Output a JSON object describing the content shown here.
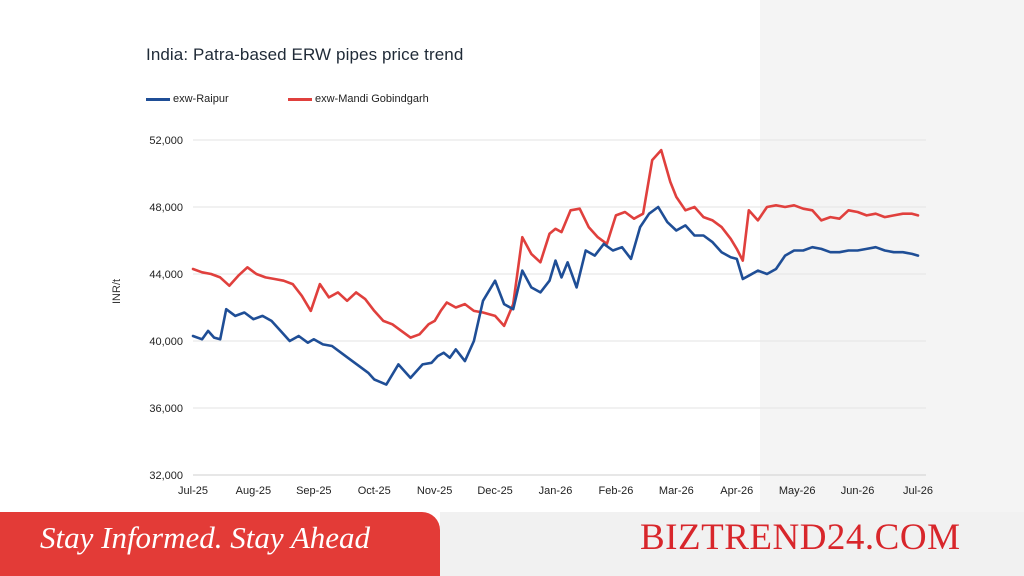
{
  "chart_data": {
    "type": "line",
    "title": "India: Patra-based ERW pipes price trend",
    "ylabel": "INR/t",
    "xlabel": "",
    "ylim": [
      32000,
      52000
    ],
    "yticks": [
      "32,000",
      "36,000",
      "40,000",
      "44,000",
      "48,000",
      "52,000"
    ],
    "ytick_values": [
      32000,
      36000,
      40000,
      44000,
      48000,
      52000
    ],
    "xticks": [
      "Jul-25",
      "Aug-25",
      "Sep-25",
      "Oct-25",
      "Nov-25",
      "Dec-25",
      "Jan-26",
      "Feb-26",
      "Mar-26",
      "Apr-26",
      "May-26",
      "Jun-26",
      "Jul-26"
    ],
    "x_tick_months": [
      0,
      1,
      2,
      3,
      4,
      5,
      6,
      7,
      8,
      9,
      10,
      11,
      12
    ],
    "grid": "horizontal",
    "legend": "top-left",
    "series": [
      {
        "name": "exw-Raipur",
        "color": "#1f4e96",
        "x": [
          0,
          0.15,
          0.25,
          0.35,
          0.45,
          0.55,
          0.7,
          0.85,
          1.0,
          1.15,
          1.3,
          1.45,
          1.6,
          1.75,
          1.9,
          2.0,
          2.15,
          2.3,
          2.45,
          2.6,
          2.75,
          2.9,
          3.0,
          3.2,
          3.4,
          3.6,
          3.8,
          3.95,
          4.05,
          4.15,
          4.25,
          4.35,
          4.5,
          4.65,
          4.8,
          5.0,
          5.15,
          5.3,
          5.45,
          5.6,
          5.75,
          5.9,
          6.0,
          6.1,
          6.2,
          6.35,
          6.5,
          6.65,
          6.8,
          6.95,
          7.1,
          7.25,
          7.4,
          7.55,
          7.7,
          7.85,
          8.0,
          8.15,
          8.3,
          8.45,
          8.6,
          8.75,
          8.9,
          9.0,
          9.1,
          9.2,
          9.35,
          9.5,
          9.65,
          9.8,
          9.95,
          10.1,
          10.25,
          10.4,
          10.55,
          10.7,
          10.85,
          11.0,
          11.15,
          11.3,
          11.45,
          11.6,
          11.75,
          11.9,
          12.0
        ],
        "values": [
          40300,
          40100,
          40600,
          40200,
          40100,
          41900,
          41500,
          41700,
          41300,
          41500,
          41200,
          40600,
          40000,
          40300,
          39900,
          40100,
          39800,
          39700,
          39300,
          38900,
          38500,
          38100,
          37700,
          37400,
          38600,
          37800,
          38600,
          38700,
          39100,
          39300,
          39000,
          39500,
          38800,
          40000,
          42400,
          43600,
          42200,
          41900,
          44200,
          43200,
          42900,
          43600,
          44800,
          43800,
          44700,
          43200,
          45400,
          45100,
          45800,
          45400,
          45600,
          44900,
          46800,
          47600,
          48000,
          47100,
          46600,
          46900,
          46300,
          46300,
          45900,
          45300,
          45000,
          44900,
          43700,
          43900,
          44200,
          44000,
          44300,
          45100,
          45400,
          45400,
          45600,
          45500,
          45300,
          45300,
          45400,
          45400,
          45500,
          45600,
          45400,
          45300,
          45300,
          45200,
          45100
        ]
      },
      {
        "name": "exw-Mandi Gobindgarh",
        "color": "#e0403d",
        "x": [
          0,
          0.15,
          0.3,
          0.45,
          0.6,
          0.75,
          0.9,
          1.05,
          1.2,
          1.35,
          1.5,
          1.65,
          1.8,
          1.95,
          2.1,
          2.25,
          2.4,
          2.55,
          2.7,
          2.85,
          3.0,
          3.15,
          3.3,
          3.45,
          3.6,
          3.75,
          3.9,
          4.0,
          4.1,
          4.2,
          4.35,
          4.5,
          4.65,
          4.8,
          5.0,
          5.15,
          5.3,
          5.45,
          5.6,
          5.75,
          5.9,
          6.0,
          6.1,
          6.25,
          6.4,
          6.55,
          6.7,
          6.85,
          7.0,
          7.15,
          7.3,
          7.45,
          7.6,
          7.75,
          7.9,
          8.0,
          8.15,
          8.3,
          8.45,
          8.6,
          8.75,
          8.9,
          9.0,
          9.1,
          9.2,
          9.35,
          9.5,
          9.65,
          9.8,
          9.95,
          10.1,
          10.25,
          10.4,
          10.55,
          10.7,
          10.85,
          11.0,
          11.15,
          11.3,
          11.45,
          11.6,
          11.75,
          11.9,
          12.0
        ],
        "values": [
          44300,
          44100,
          44000,
          43800,
          43300,
          43900,
          44400,
          44000,
          43800,
          43700,
          43600,
          43400,
          42700,
          41800,
          43400,
          42600,
          42900,
          42400,
          42900,
          42500,
          41800,
          41200,
          41000,
          40600,
          40200,
          40400,
          41000,
          41200,
          41800,
          42300,
          42000,
          42200,
          41800,
          41700,
          41500,
          40900,
          42200,
          46200,
          45200,
          44700,
          46400,
          46700,
          46500,
          47800,
          47900,
          46800,
          46200,
          45800,
          47500,
          47700,
          47300,
          47600,
          50800,
          51400,
          49500,
          48600,
          47800,
          48000,
          47400,
          47200,
          46800,
          46100,
          45500,
          44800,
          47800,
          47200,
          48000,
          48100,
          48000,
          48100,
          47900,
          47800,
          47200,
          47400,
          47300,
          47800,
          47700,
          47500,
          47600,
          47400,
          47500,
          47600,
          47600,
          47500
        ]
      }
    ]
  },
  "footer": {
    "slogan": "Stay Informed. Stay Ahead",
    "brand": "BIZTREND24.COM"
  },
  "colors": {
    "banner_red": "#e33b37",
    "brand_red": "#d8262b",
    "grid": "#e3e3e3"
  }
}
